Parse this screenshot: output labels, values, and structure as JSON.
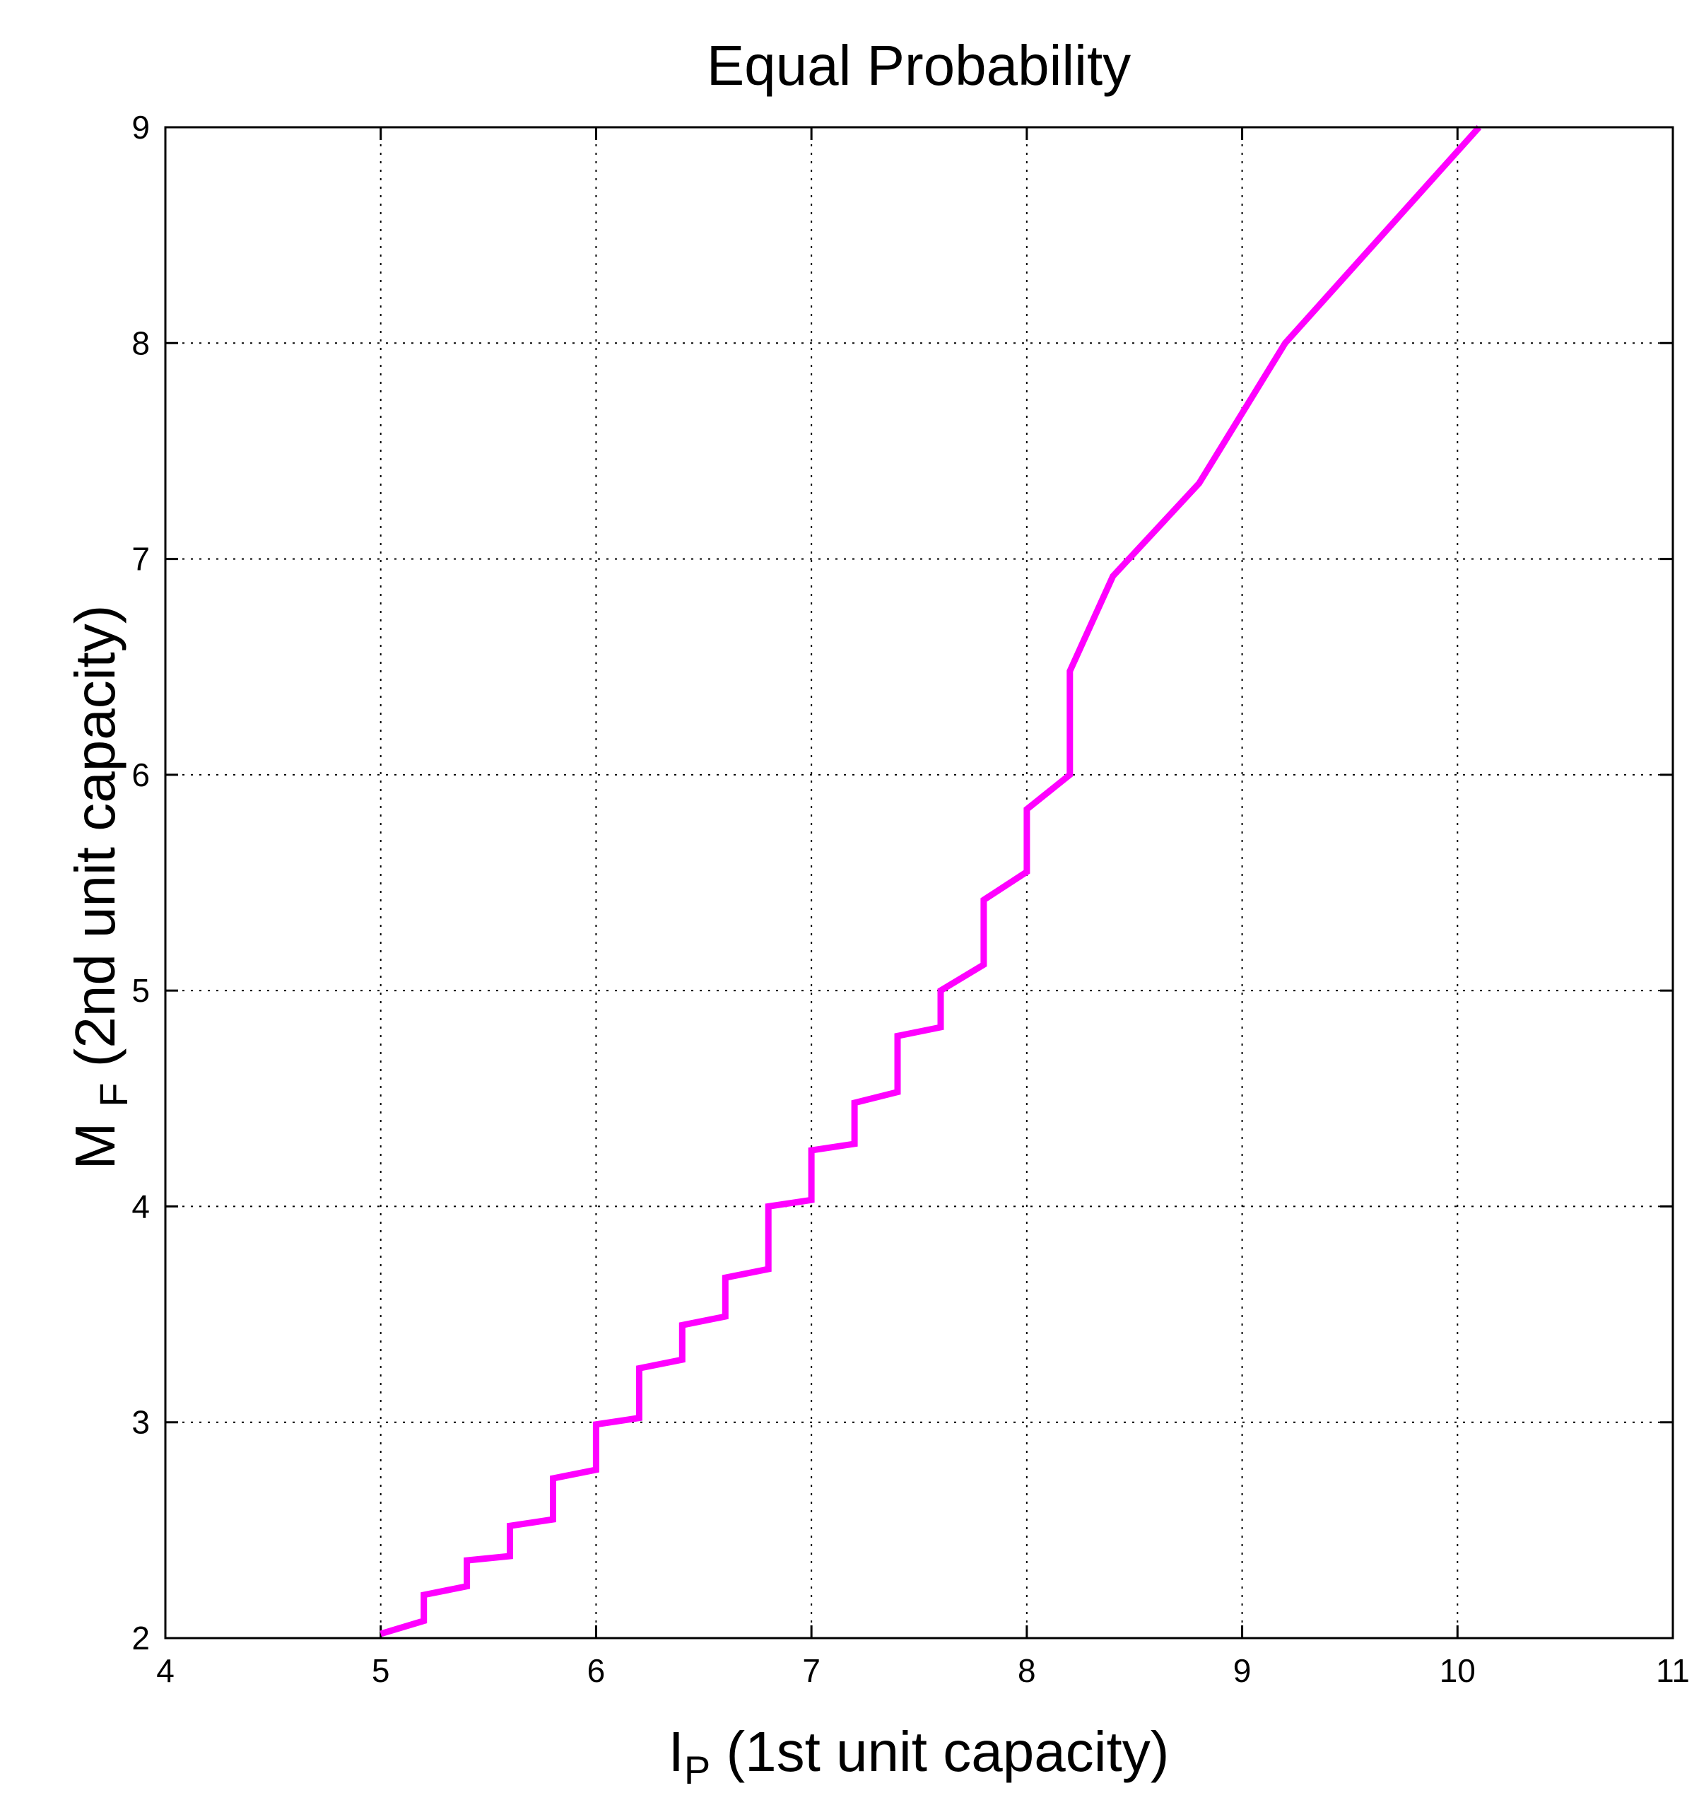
{
  "chart_data": {
    "type": "line",
    "title": "Equal Probability",
    "xlabel": {
      "main": "I",
      "subscript": "P",
      "rest": " (1st unit capacity)"
    },
    "ylabel": {
      "main": "M",
      "subscript": "F",
      "rest": " (2nd unit capacity)"
    },
    "xlim": [
      4,
      11
    ],
    "ylim": [
      2,
      9
    ],
    "xticks": [
      4,
      5,
      6,
      7,
      8,
      9,
      10,
      11
    ],
    "yticks": [
      2,
      3,
      4,
      5,
      6,
      7,
      8,
      9
    ],
    "grid": true,
    "grid_style": "dotted",
    "line_color": "#ff00ff",
    "series": [
      {
        "x": [
          5.0,
          5.2,
          5.2,
          5.4,
          5.4,
          5.6,
          5.6,
          5.8,
          5.8,
          6.0,
          6.0,
          6.2,
          6.2,
          6.4,
          6.4,
          6.6,
          6.6,
          6.8,
          6.8,
          7.0,
          7.0,
          7.2,
          7.2,
          7.4,
          7.4,
          7.6,
          7.6,
          7.8,
          7.8,
          8.0,
          8.0,
          8.2,
          8.2,
          8.4,
          8.8,
          9.2,
          10.1
        ],
        "y": [
          2.02,
          2.08,
          2.2,
          2.24,
          2.36,
          2.38,
          2.52,
          2.55,
          2.74,
          2.78,
          2.99,
          3.02,
          3.25,
          3.29,
          3.45,
          3.49,
          3.67,
          3.71,
          4.0,
          4.03,
          4.26,
          4.29,
          4.48,
          4.53,
          4.79,
          4.83,
          5.0,
          5.12,
          5.42,
          5.55,
          5.84,
          6.0,
          6.48,
          6.92,
          7.35,
          8.0,
          9.0
        ]
      }
    ]
  }
}
